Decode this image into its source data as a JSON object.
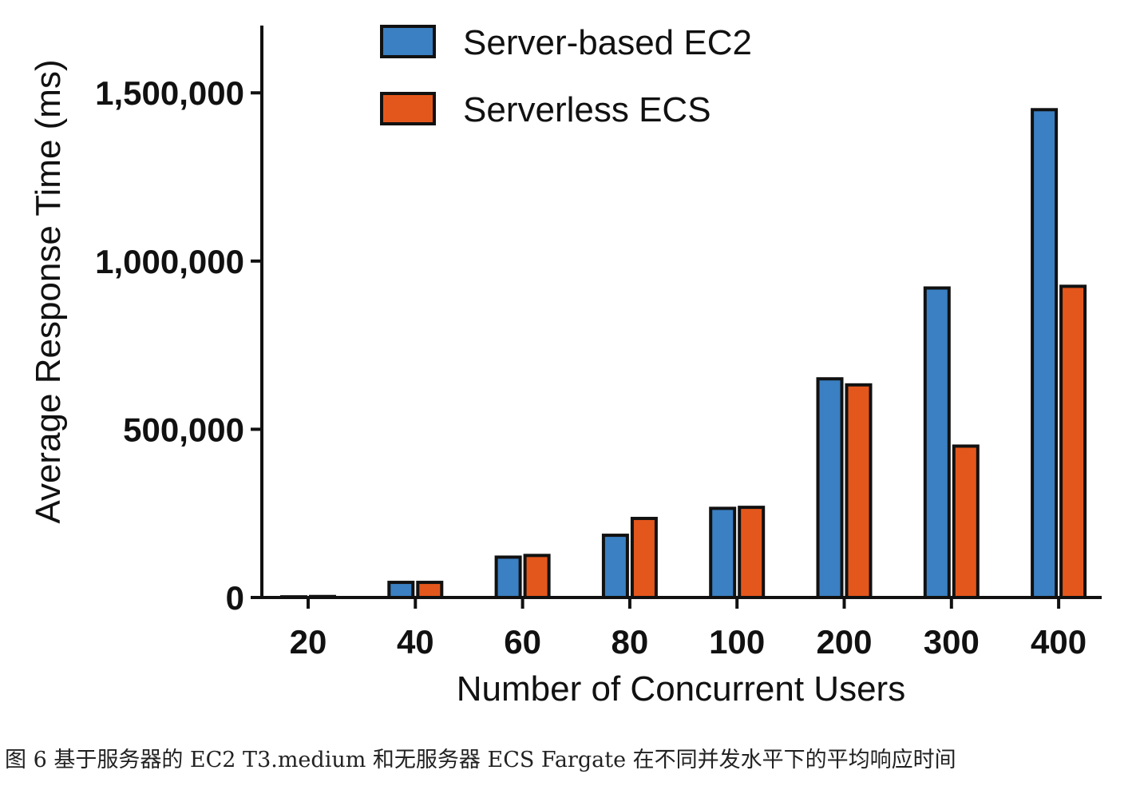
{
  "chart_data": {
    "type": "bar",
    "title": "",
    "xlabel": "Number of Concurrent Users",
    "ylabel": "Average Response Time (ms)",
    "categories": [
      "20",
      "40",
      "60",
      "80",
      "100",
      "200",
      "300",
      "400"
    ],
    "ylim": [
      0,
      1700000
    ],
    "yticks": [
      0,
      500000,
      1000000,
      1500000
    ],
    "ytick_labels": [
      "0",
      "500,000",
      "1,000,000",
      "1,500,000"
    ],
    "grid": false,
    "legend_position": "top-center",
    "series": [
      {
        "name": "Server-based EC2",
        "color": "#3a80c2",
        "values": [
          2000,
          45000,
          120000,
          185000,
          265000,
          650000,
          920000,
          1450000
        ]
      },
      {
        "name": "Serverless ECS",
        "color": "#e4571c",
        "values": [
          3000,
          45000,
          125000,
          235000,
          268000,
          632000,
          450000,
          925000
        ]
      }
    ]
  },
  "caption": "图 6 基于服务器的 EC2 T3.medium 和无服务器 ECS Fargate 在不同并发水平下的平均响应时间"
}
